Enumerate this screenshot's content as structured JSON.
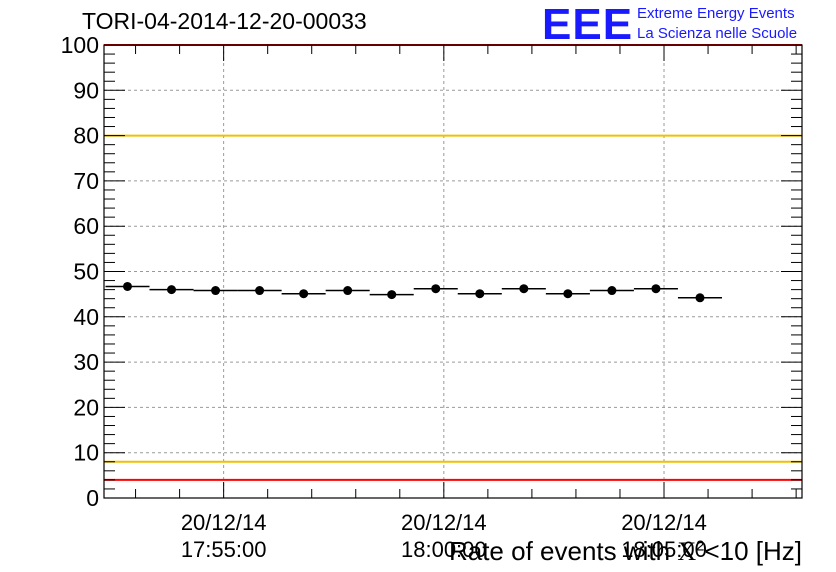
{
  "header": {
    "run_title": "TORI-04-2014-12-20-00033"
  },
  "logo": {
    "mark": "EEE",
    "line1": "Extreme Energy Events",
    "line2": "La Scienza nelle Scuole",
    "color": "#1a1aff"
  },
  "axis_label": {
    "prefix": "Rate of events with ",
    "chi": "X",
    "sup": "2",
    "suffix": "<10 [Hz]"
  },
  "chart_data": {
    "type": "scatter",
    "title": "TORI-04-2014-12-20-00033",
    "xlabel": "Rate of events with X²<10 [Hz]",
    "ylabel": "",
    "ylim": [
      0,
      100
    ],
    "y_ticks": [
      "0",
      "10",
      "20",
      "30",
      "40",
      "50",
      "60",
      "70",
      "80",
      "90",
      "100"
    ],
    "x_ticks": [
      {
        "date": "20/12/14",
        "time": "17:55:00",
        "t": 0
      },
      {
        "date": "20/12/14",
        "time": "18:00:00",
        "t": 300
      },
      {
        "date": "20/12/14",
        "time": "18:05:00",
        "t": 600
      }
    ],
    "x_range_seconds_from_17_55_00": [
      -163,
      788
    ],
    "bin_width_seconds": 60,
    "points": [
      {
        "t": -131,
        "y": 46.7
      },
      {
        "t": -71,
        "y": 46.0
      },
      {
        "t": -11,
        "y": 45.8
      },
      {
        "t": 49,
        "y": 45.8
      },
      {
        "t": 109,
        "y": 45.1
      },
      {
        "t": 169,
        "y": 45.8
      },
      {
        "t": 229,
        "y": 44.9
      },
      {
        "t": 289,
        "y": 46.2
      },
      {
        "t": 349,
        "y": 45.1
      },
      {
        "t": 409,
        "y": 46.2
      },
      {
        "t": 469,
        "y": 45.1
      },
      {
        "t": 529,
        "y": 45.8
      },
      {
        "t": 589,
        "y": 46.2
      },
      {
        "t": 649,
        "y": 44.2
      }
    ],
    "reference_lines": [
      {
        "y": 80,
        "color": "#f0c000"
      },
      {
        "y": 8,
        "color": "#f0c000"
      },
      {
        "y": 4,
        "color": "#ff0000"
      },
      {
        "y": 100,
        "color": "#ff0000"
      }
    ],
    "grid": true,
    "marker_color": "#000000"
  }
}
